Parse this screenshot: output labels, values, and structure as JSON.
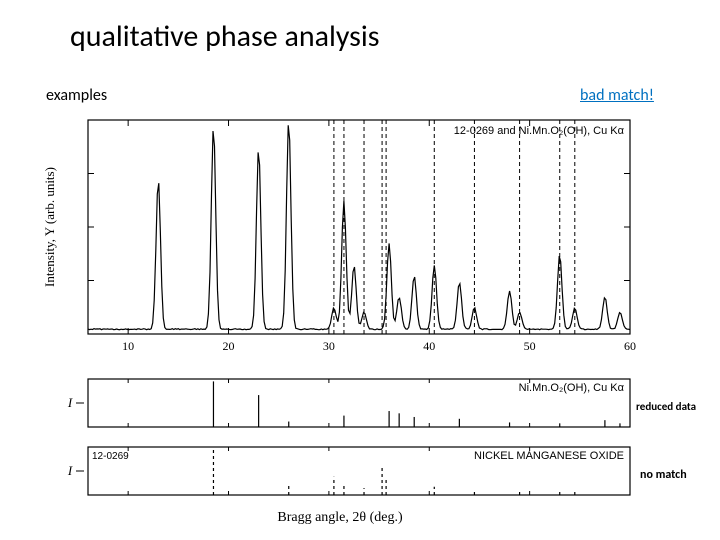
{
  "title": "qualitative phase analysis",
  "examples_label": "examples",
  "bad_match_label": "bad match!",
  "reduced_data_label": "reduced data",
  "no_match_label": "no match",
  "xlabel": "Bragg angle, 2θ (deg.)",
  "ylabel_main": "Intensity, Y (arb. units)",
  "ylabel_strip": "I",
  "chart_main": {
    "type": "xrd-line",
    "title": "12-0269 and Ni.Mn.O₂(OH), Cu Kα",
    "title_fontsize": 11,
    "title_fontfamily": "Arial",
    "xlim": [
      6,
      60
    ],
    "xticks": [
      10,
      20,
      30,
      40,
      50,
      60
    ],
    "tick_fontsize": 12,
    "line_color": "#000000",
    "line_width": 1.2,
    "background_color": "#ffffff",
    "border_color": "#000000",
    "peaks": [
      {
        "x": 13.0,
        "h": 0.7
      },
      {
        "x": 18.5,
        "h": 0.95
      },
      {
        "x": 23.0,
        "h": 0.85
      },
      {
        "x": 26.0,
        "h": 0.98
      },
      {
        "x": 30.5,
        "h": 0.1
      },
      {
        "x": 31.5,
        "h": 0.6
      },
      {
        "x": 32.5,
        "h": 0.3
      },
      {
        "x": 33.5,
        "h": 0.08
      },
      {
        "x": 36.0,
        "h": 0.4
      },
      {
        "x": 37.0,
        "h": 0.15
      },
      {
        "x": 38.5,
        "h": 0.25
      },
      {
        "x": 40.5,
        "h": 0.3
      },
      {
        "x": 43.0,
        "h": 0.22
      },
      {
        "x": 44.5,
        "h": 0.1
      },
      {
        "x": 48.0,
        "h": 0.18
      },
      {
        "x": 49.0,
        "h": 0.08
      },
      {
        "x": 53.0,
        "h": 0.35
      },
      {
        "x": 54.5,
        "h": 0.1
      },
      {
        "x": 57.5,
        "h": 0.15
      },
      {
        "x": 59.0,
        "h": 0.08
      }
    ],
    "dashed_lines_x": [
      30.5,
      31.5,
      33.5,
      35.3,
      35.7,
      40.5,
      44.5,
      49.0,
      53.0,
      54.5
    ],
    "dashed_color": "#000000"
  },
  "chart_strip1": {
    "type": "stick",
    "title": "Ni.Mn.O₂(OH), Cu Kα",
    "title_fontsize": 11,
    "xlim": [
      6,
      60
    ],
    "sticks": [
      {
        "x": 18.5,
        "h": 1.0
      },
      {
        "x": 23.0,
        "h": 0.7
      },
      {
        "x": 26.0,
        "h": 0.12
      },
      {
        "x": 31.5,
        "h": 0.25
      },
      {
        "x": 36.0,
        "h": 0.35
      },
      {
        "x": 37.0,
        "h": 0.3
      },
      {
        "x": 38.5,
        "h": 0.22
      },
      {
        "x": 43.0,
        "h": 0.18
      },
      {
        "x": 48.0,
        "h": 0.1
      },
      {
        "x": 53.0,
        "h": 0.08
      },
      {
        "x": 57.5,
        "h": 0.15
      },
      {
        "x": 59.0,
        "h": 0.08
      }
    ],
    "line_color": "#000000",
    "border_color": "#000000"
  },
  "chart_strip2": {
    "type": "stick-dashed",
    "left_label": "12-0269",
    "title": "NICKEL MANGANESE OXIDE",
    "title_fontsize": 11,
    "xlim": [
      6,
      60
    ],
    "sticks": [
      {
        "x": 18.5,
        "h": 1.0
      },
      {
        "x": 26.0,
        "h": 0.2
      },
      {
        "x": 30.5,
        "h": 0.4
      },
      {
        "x": 31.5,
        "h": 0.22
      },
      {
        "x": 33.5,
        "h": 0.15
      },
      {
        "x": 35.3,
        "h": 0.6
      },
      {
        "x": 35.7,
        "h": 0.35
      },
      {
        "x": 40.5,
        "h": 0.18
      },
      {
        "x": 44.5,
        "h": 0.12
      },
      {
        "x": 49.0,
        "h": 0.1
      },
      {
        "x": 53.0,
        "h": 0.08
      },
      {
        "x": 54.5,
        "h": 0.08
      }
    ],
    "dash_pattern": "3,3",
    "line_color": "#000000",
    "border_color": "#000000"
  },
  "colors": {
    "text": "#000000",
    "accent": "#0070c0",
    "bg": "#ffffff"
  }
}
